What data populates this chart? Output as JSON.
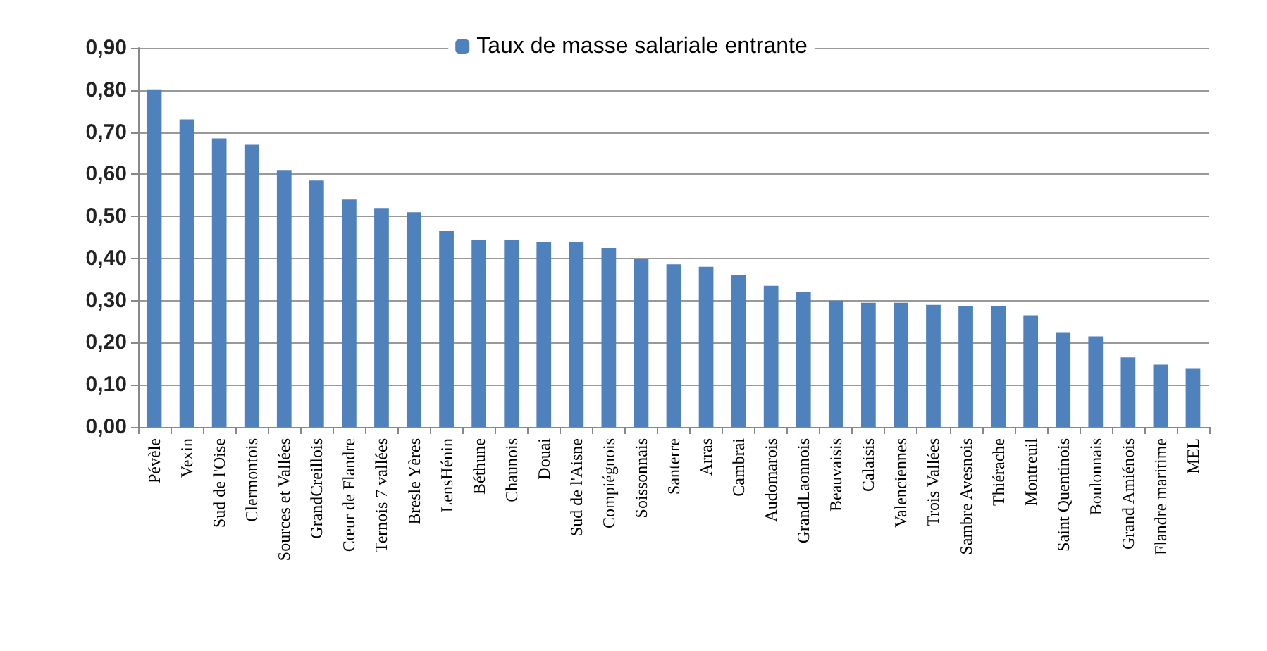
{
  "chart_data": {
    "type": "bar",
    "categories": [
      "Pévèle",
      "Vexin",
      "Sud de l'Oise",
      "Clermontois",
      "Sources et Vallées",
      "GrandCreillois",
      "Cœur de Flandre",
      "Ternois 7 vallées",
      "Bresle Yères",
      "LensHénin",
      "Béthune",
      "Chaunois",
      "Douai",
      "Sud de l'Aisne",
      "Compiégnois",
      "Soissonnais",
      "Santerre",
      "Arras",
      "Cambrai",
      "Audomarois",
      "GrandLaonnois",
      "Beauvaisis",
      "Calaisis",
      "Valenciennes",
      "Trois Vallées",
      "Sambre Avesnois",
      "Thiérache",
      "Montreuil",
      "Saint Quentinois",
      "Boulonnais",
      "Grand Amiénois",
      "Flandre maritime",
      "MEL"
    ],
    "series": [
      {
        "name": "Taux de masse salariale entrante",
        "color": "#4f81bd",
        "values": [
          0.8,
          0.73,
          0.685,
          0.67,
          0.61,
          0.585,
          0.54,
          0.52,
          0.51,
          0.465,
          0.445,
          0.445,
          0.44,
          0.44,
          0.425,
          0.4,
          0.386,
          0.38,
          0.36,
          0.335,
          0.32,
          0.3,
          0.295,
          0.295,
          0.29,
          0.287,
          0.287,
          0.265,
          0.225,
          0.215,
          0.165,
          0.148,
          0.138
        ]
      }
    ],
    "ylim": [
      0,
      0.9
    ],
    "yticks": [
      {
        "value": 0,
        "label": "0,00"
      },
      {
        "value": 0.1,
        "label": "0,10"
      },
      {
        "value": 0.2,
        "label": "0,20"
      },
      {
        "value": 0.3,
        "label": "0,30"
      },
      {
        "value": 0.4,
        "label": "0,40"
      },
      {
        "value": 0.5,
        "label": "0,50"
      },
      {
        "value": 0.6,
        "label": "0,60"
      },
      {
        "value": 0.7,
        "label": "0,70"
      },
      {
        "value": 0.8,
        "label": "0,80"
      },
      {
        "value": 0.9,
        "label": "0,90"
      }
    ],
    "grid": "y",
    "legend": "top"
  }
}
